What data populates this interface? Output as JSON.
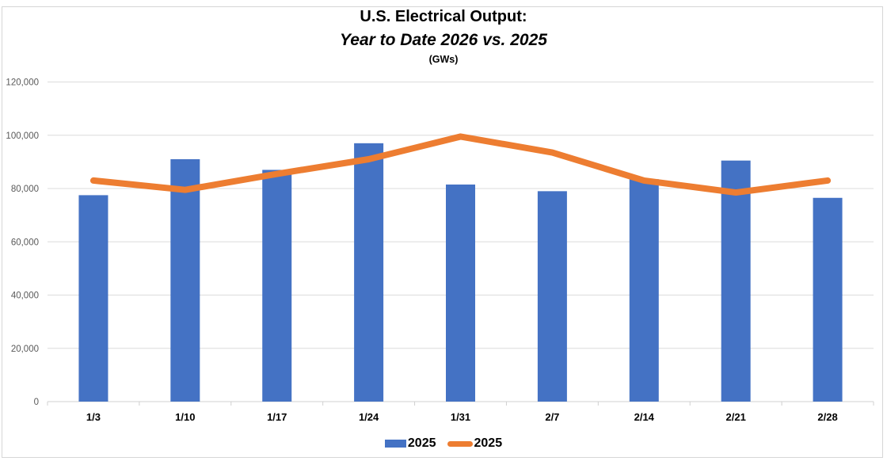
{
  "header": {
    "title": "U.S. Electrical Output:",
    "subtitle": "Year to Date 2026 vs. 2025",
    "units": "(GWs)"
  },
  "chart_data": {
    "type": "bar",
    "title": "U.S. Electrical Output:",
    "subtitle": "Year to Date 2026 vs. 2025",
    "units_label": "(GWs)",
    "xlabel": "",
    "ylabel": "",
    "categories": [
      "1/3",
      "1/10",
      "1/17",
      "1/24",
      "1/31",
      "2/7",
      "2/14",
      "2/21",
      "2/28"
    ],
    "series": [
      {
        "name": "2025",
        "type": "bar",
        "color": "#4472C4",
        "values": [
          77500,
          91000,
          87000,
          97000,
          81500,
          79000,
          83500,
          90500,
          76500
        ]
      },
      {
        "name": "2025",
        "type": "line",
        "color": "#ED7D31",
        "values": [
          83000,
          79500,
          85500,
          91000,
          99500,
          93500,
          83000,
          78500,
          83000
        ]
      }
    ],
    "ylim": [
      0,
      120000
    ],
    "ytick_step": 20000,
    "ytick_labels": [
      "0",
      "20,000",
      "40,000",
      "60,000",
      "80,000",
      "100,000",
      "120,000"
    ],
    "grid": true,
    "legend_position": "bottom",
    "colors": {
      "grid": "#dcdcdc",
      "axis": "#d0d0d0",
      "tick": "#d0d0d0",
      "y_label": "#595959",
      "x_label": "#000000",
      "frame": "#d6d6d6"
    }
  }
}
